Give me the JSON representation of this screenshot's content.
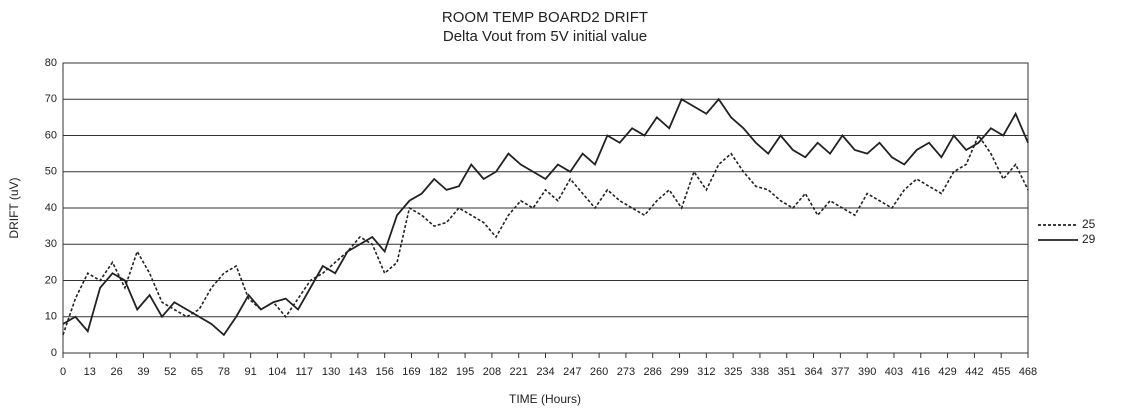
{
  "chart_data": {
    "type": "line",
    "title": "ROOM TEMP BOARD2 DRIFT",
    "subtitle": "Delta Vout from 5V initial value",
    "x_label": "TIME (Hours)",
    "y_label": "DRIFT (uV)",
    "x": [
      0,
      6,
      12,
      18,
      24,
      30,
      36,
      42,
      48,
      54,
      60,
      66,
      72,
      78,
      84,
      90,
      96,
      102,
      108,
      114,
      120,
      126,
      132,
      138,
      144,
      150,
      156,
      162,
      168,
      174,
      180,
      186,
      192,
      198,
      204,
      210,
      216,
      222,
      228,
      234,
      240,
      246,
      252,
      258,
      264,
      270,
      276,
      282,
      288,
      294,
      300,
      306,
      312,
      318,
      324,
      330,
      336,
      342,
      348,
      354,
      360,
      366,
      372,
      378,
      384,
      390,
      396,
      402,
      408,
      414,
      420,
      426,
      432,
      438,
      444,
      450,
      456,
      462,
      468
    ],
    "series": [
      {
        "name": "25",
        "color": "#222222",
        "line_style": "dashed",
        "values": [
          5,
          15,
          22,
          20,
          25,
          18,
          28,
          22,
          14,
          12,
          10,
          12,
          18,
          22,
          24,
          15,
          12,
          14,
          10,
          15,
          20,
          22,
          25,
          28,
          32,
          30,
          22,
          25,
          40,
          38,
          35,
          36,
          40,
          38,
          36,
          32,
          38,
          42,
          40,
          45,
          42,
          48,
          44,
          40,
          45,
          42,
          40,
          38,
          42,
          45,
          40,
          50,
          45,
          52,
          55,
          50,
          46,
          45,
          42,
          40,
          44,
          38,
          42,
          40,
          38,
          44,
          42,
          40,
          45,
          48,
          46,
          44,
          50,
          52,
          60,
          55,
          48,
          52,
          45
        ]
      },
      {
        "name": "29",
        "color": "#222222",
        "line_style": "solid",
        "values": [
          8,
          10,
          6,
          18,
          22,
          20,
          12,
          16,
          10,
          14,
          12,
          10,
          8,
          5,
          10,
          16,
          12,
          14,
          15,
          12,
          18,
          24,
          22,
          28,
          30,
          32,
          28,
          38,
          42,
          44,
          48,
          45,
          46,
          52,
          48,
          50,
          55,
          52,
          50,
          48,
          52,
          50,
          55,
          52,
          60,
          58,
          62,
          60,
          65,
          62,
          70,
          68,
          66,
          70,
          65,
          62,
          58,
          55,
          60,
          56,
          54,
          58,
          55,
          60,
          56,
          55,
          58,
          54,
          52,
          56,
          58,
          54,
          60,
          56,
          58,
          62,
          60,
          66,
          58
        ]
      }
    ],
    "xlim": [
      0,
      468
    ],
    "xticks": [
      0,
      13,
      26,
      39,
      52,
      65,
      78,
      91,
      104,
      117,
      130,
      143,
      156,
      169,
      182,
      195,
      208,
      221,
      234,
      247,
      260,
      273,
      286,
      299,
      312,
      325,
      338,
      351,
      364,
      377,
      390,
      403,
      416,
      429,
      442,
      455,
      468
    ],
    "ylim": [
      0,
      80
    ],
    "yticks": [
      0,
      10,
      20,
      30,
      40,
      50,
      60,
      70,
      80
    ],
    "grid": true,
    "legend": "right"
  }
}
